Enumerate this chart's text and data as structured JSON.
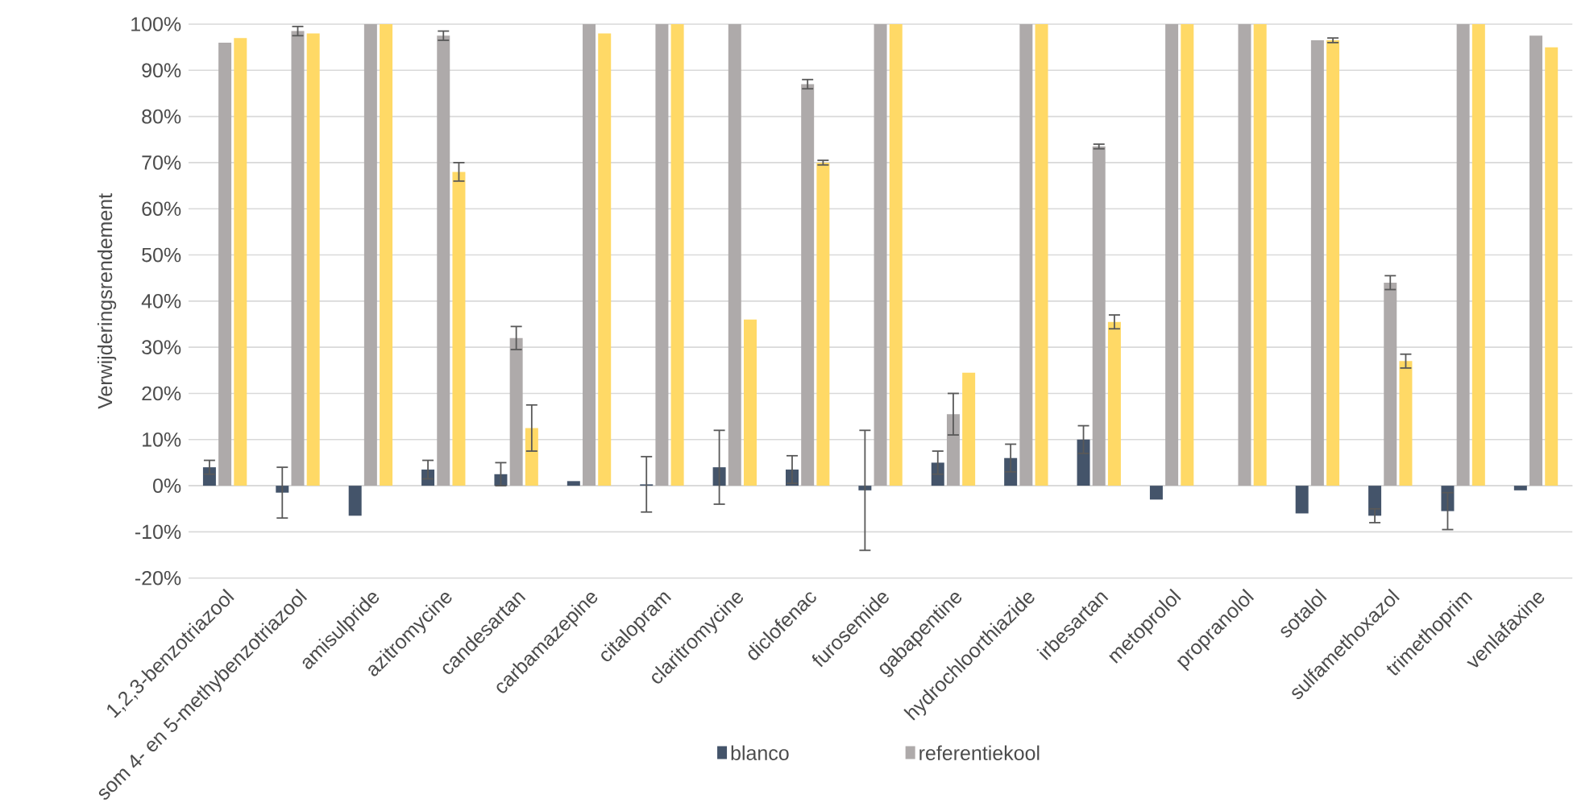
{
  "chart_data": {
    "type": "bar",
    "ylabel": "Verwijderingsrendement",
    "categories": [
      "1,2,3-benzotriazool",
      "som 4- en 5-methybenzotriazool",
      "amisulpride",
      "azitromycine",
      "candesartan",
      "carbamazepine",
      "citalopram",
      "claritromycine",
      "diclofenac",
      "furosemide",
      "gabapentine",
      "hydrochloorthiazide",
      "irbesartan",
      "metoprolol",
      "propranolol",
      "sotalol",
      "sulfamethoxazol",
      "trimethoprim",
      "venlafaxine"
    ],
    "series": [
      {
        "name": "blanco",
        "color": "#44546a",
        "values": [
          4,
          -1.5,
          -6.5,
          3.5,
          2.5,
          1,
          0.3,
          4,
          3.5,
          -1,
          5,
          6,
          10,
          -3,
          0,
          -6,
          -6.5,
          -5.5,
          -1
        ],
        "errors": [
          1.5,
          5.5,
          null,
          2,
          2.5,
          null,
          6,
          8,
          3,
          13,
          2.5,
          3,
          3,
          null,
          null,
          null,
          1.5,
          4,
          null
        ]
      },
      {
        "name": "referentiekool",
        "color": "#aeaaaa",
        "values": [
          96,
          98.5,
          100,
          97.5,
          32,
          100,
          100,
          100,
          87,
          100,
          15.5,
          100,
          73.5,
          100,
          100,
          96.5,
          44,
          100,
          97.5
        ],
        "errors": [
          null,
          1,
          null,
          1,
          2.5,
          null,
          null,
          null,
          1,
          null,
          4.5,
          null,
          0.5,
          null,
          null,
          null,
          1.5,
          null,
          null
        ]
      },
      {
        "color": "#ffd966",
        "values": [
          97,
          98,
          100,
          68,
          12.5,
          98,
          100,
          36,
          70,
          100,
          24.5,
          100,
          35.5,
          100,
          100,
          96.5,
          27,
          100,
          95
        ],
        "errors": [
          null,
          null,
          null,
          2,
          5,
          null,
          null,
          null,
          0.5,
          null,
          null,
          null,
          1.5,
          null,
          null,
          0.5,
          1.5,
          null,
          null
        ]
      }
    ],
    "ylim": [
      -20,
      100
    ],
    "yticks": [
      {
        "value": -20,
        "label": "-20%"
      },
      {
        "value": -10,
        "label": "-10%"
      },
      {
        "value": 0,
        "label": "0%"
      },
      {
        "value": 10,
        "label": "10%"
      },
      {
        "value": 20,
        "label": "20%"
      },
      {
        "value": 30,
        "label": "30%"
      },
      {
        "value": 40,
        "label": "40%"
      },
      {
        "value": 50,
        "label": "50%"
      },
      {
        "value": 60,
        "label": "60%"
      },
      {
        "value": 70,
        "label": "70%"
      },
      {
        "value": 80,
        "label": "80%"
      },
      {
        "value": 90,
        "label": "90%"
      },
      {
        "value": 100,
        "label": "100%"
      }
    ],
    "grid": "y",
    "legend": "bottom"
  }
}
